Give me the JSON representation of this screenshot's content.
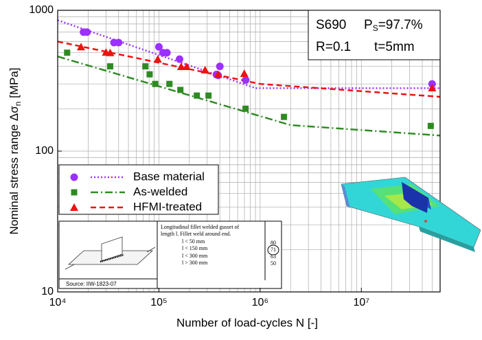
{
  "chart_data": {
    "type": "scatter",
    "xscale": "log",
    "yscale": "log",
    "xlim": [
      10000,
      60000000
    ],
    "ylim": [
      10,
      1000
    ],
    "xticks": [
      {
        "value": 10000,
        "label": "10⁴"
      },
      {
        "value": 100000,
        "label": "10⁵"
      },
      {
        "value": 1000000,
        "label": "10⁶"
      },
      {
        "value": 10000000,
        "label": "10⁷"
      }
    ],
    "yticks": [
      10,
      100,
      1000
    ],
    "xminorticks": [
      20000,
      30000,
      40000,
      50000,
      60000,
      70000,
      80000,
      90000,
      200000,
      300000,
      400000,
      500000,
      600000,
      700000,
      800000,
      900000,
      2000000,
      3000000,
      4000000,
      5000000,
      6000000,
      7000000,
      8000000,
      9000000,
      20000000,
      30000000,
      40000000,
      50000000
    ],
    "yminorticks": [
      20,
      30,
      40,
      50,
      60,
      70,
      80,
      90,
      200,
      300,
      400,
      500,
      600,
      700,
      800,
      900
    ],
    "grid": true,
    "xlabel": "Number of load-cycles N [-]",
    "ylabel": [
      "Nominal stress range Δσ",
      "n",
      " [MPa]"
    ],
    "legend": "center left",
    "series": [
      {
        "name": "Base material",
        "color": "#9b30ff",
        "marker": "circle",
        "linestyle": "dotted",
        "x": [
          18000,
          19500,
          36000,
          40000,
          100000,
          110000,
          120000,
          160000,
          370000,
          400000,
          385000,
          720000,
          50000000
        ],
        "values": [
          700,
          700,
          590,
          590,
          550,
          500,
          500,
          450,
          350,
          400,
          345,
          320,
          300
        ],
        "fit": {
          "x": [
            10000,
            900000,
            60000000
          ],
          "values": [
            850,
            280,
            280
          ]
        }
      },
      {
        "name": "As-welded",
        "color": "#2e8b22",
        "marker": "square",
        "linestyle": "dashdot",
        "x": [
          12400,
          33000,
          73500,
          81000,
          92000,
          127000,
          163000,
          237000,
          309000,
          718000,
          1720000,
          48500000
        ],
        "values": [
          500,
          400,
          400,
          351,
          300,
          300,
          272,
          248,
          248,
          200,
          175,
          151
        ],
        "fit": {
          "x": [
            10000,
            2000000,
            60000000
          ],
          "values": [
            470,
            153,
            129
          ]
        }
      },
      {
        "name": "HFMI-treated",
        "color": "#ee1111",
        "marker": "triangle",
        "linestyle": "dashed",
        "x": [
          17000,
          30000,
          33000,
          97500,
          166000,
          188000,
          286000,
          385000,
          697000,
          50000000
        ],
        "values": [
          550,
          503,
          500,
          450,
          398,
          398,
          377,
          351,
          356,
          281
        ],
        "fit": {
          "x": [
            10000,
            1000000,
            60000000
          ],
          "values": [
            600,
            300,
            243
          ]
        }
      }
    ],
    "box": {
      "material": "S690",
      "ps": [
        "P",
        "S",
        "=97.7%"
      ],
      "ratio": "R=0.1",
      "thickness": "t=5mm"
    },
    "inset": {
      "description": [
        "Longitudinal fillet welded gusset of",
        "length l. Fillet weld around end."
      ],
      "conditions": [
        "l < 50 mm",
        "l < 150 mm",
        "l < 300 mm",
        "l > 300 mm"
      ],
      "fat": [
        "80",
        "71",
        "63",
        "50"
      ],
      "source": "Source: IIW-1823-07"
    }
  }
}
